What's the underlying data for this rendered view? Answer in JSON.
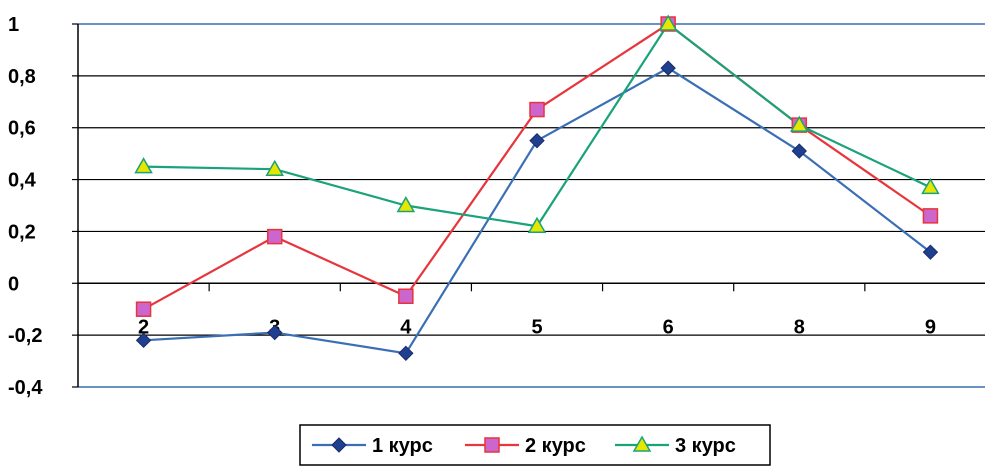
{
  "chart_data": {
    "type": "line",
    "title": "",
    "xlabel": "",
    "ylabel": "",
    "categories": [
      "2",
      "3",
      "4",
      "5",
      "6",
      "8",
      "9"
    ],
    "ylim": [
      -0.4,
      1
    ],
    "y_ticks": [
      "1",
      "0,8",
      "0,6",
      "0,4",
      "0,2",
      "0",
      "-0,2",
      "-0,4"
    ],
    "y_tick_values": [
      1,
      0.8,
      0.6,
      0.4,
      0.2,
      0,
      -0.2,
      -0.4
    ],
    "grid": "horizontal",
    "legend_position": "bottom",
    "series": [
      {
        "name": "1 курс",
        "values": [
          -0.22,
          -0.19,
          -0.27,
          0.55,
          0.83,
          0.51,
          0.12
        ],
        "color": "#3A6FB5",
        "marker": "diamond",
        "marker_color": "#1F3F8F"
      },
      {
        "name": "2 курс",
        "values": [
          -0.1,
          0.18,
          -0.05,
          0.67,
          1.0,
          0.61,
          0.26
        ],
        "color": "#E8343C",
        "marker": "square",
        "marker_color": "#CC66CC"
      },
      {
        "name": "3 курс",
        "values": [
          0.45,
          0.44,
          0.3,
          0.22,
          1.0,
          0.61,
          0.37
        ],
        "color": "#1AA37A",
        "marker": "triangle",
        "marker_color": "#E6E600"
      }
    ],
    "colors": {
      "gridline": "#000000",
      "axis_bound": "#3B6FB0"
    }
  }
}
